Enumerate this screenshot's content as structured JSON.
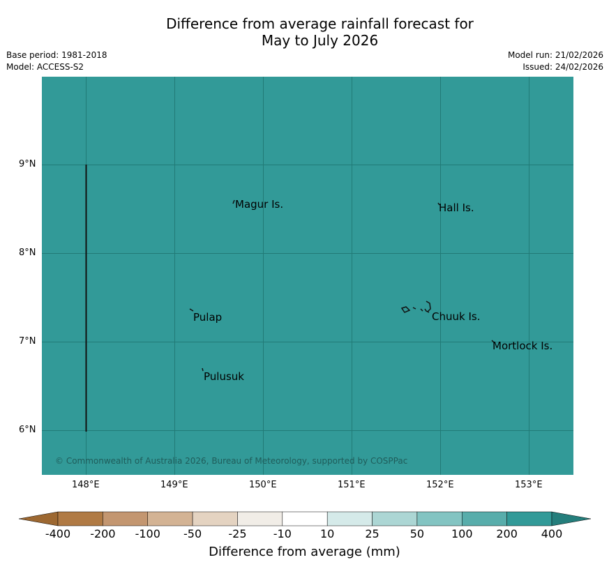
{
  "header": {
    "title_line1": "Difference from average rainfall forecast for",
    "title_line2": "May to July 2026",
    "base_period": "Base period: 1981-2018",
    "model": "Model: ACCESS-S2",
    "model_run": "Model run: 21/02/2026",
    "issued": "Issued: 24/02/2026"
  },
  "map": {
    "background_color": "#329a98",
    "grid_color": "#217a76",
    "latitude_ticks": [
      "9°N",
      "8°N",
      "7°N",
      "6°N"
    ],
    "longitude_ticks": [
      "148°E",
      "149°E",
      "150°E",
      "151°E",
      "152°E",
      "153°E"
    ],
    "places": [
      "Magur Is.",
      "Hall Is.",
      "Pulap",
      "Chuuk Is.",
      "Mortlock Is.",
      "Pulusuk"
    ],
    "copyright": "© Commonwealth of Australia 2026, Bureau of Meteorology, supported by COSPPac"
  },
  "colorbar": {
    "title": "Difference from average (mm)",
    "tick_labels": [
      "-400",
      "-200",
      "-100",
      "-50",
      "-25",
      "-10",
      "10",
      "25",
      "50",
      "100",
      "200",
      "400"
    ],
    "colors": [
      "#9d6831",
      "#b07a44",
      "#c39670",
      "#d3b394",
      "#e4d3c1",
      "#f1ede7",
      "#ffffff",
      "#d5eae9",
      "#acd6d4",
      "#83c4c2",
      "#58adab",
      "#329a98",
      "#247e7c"
    ]
  }
}
